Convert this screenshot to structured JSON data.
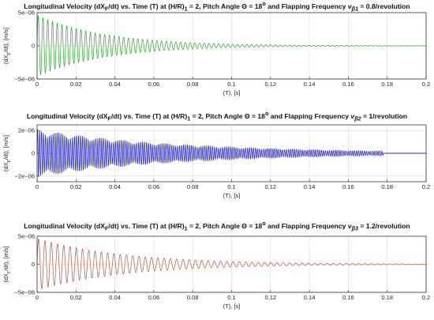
{
  "chart_data": [
    {
      "type": "line",
      "title_parts": {
        "main": "Longitudinal Velocity (dX",
        "sub1": "F",
        "mid": "/dt) vs. Time (T) at (H/R)",
        "sub2": "1",
        "mid2": " = 2, Pitch Angle ",
        "theta": "Θ",
        "mid3": " = 18",
        "deg": "o",
        "mid4": " and Flapping Frequency ",
        "nu": "ν",
        "nusub": "β1",
        "end": " = 0.8/revolution"
      },
      "xlabel": "(T), [s]",
      "ylabel": "(dX_F/dt), [m/s]",
      "ylabel_parts": {
        "a": "(dX",
        "sub": "F",
        "b": "/dt), [m/s]"
      },
      "xlim": [
        0,
        0.2
      ],
      "ylim": [
        -5e-06,
        5e-06
      ],
      "xticks": [
        "0",
        "0.02",
        "0.04",
        "0.06",
        "0.08",
        "0.1",
        "0.12",
        "0.14",
        "0.16",
        "0.18",
        "0.2"
      ],
      "yticks": [
        "5e−06",
        "0",
        "−5e−06"
      ],
      "ytick_values": [
        5e-06,
        0,
        -5e-06
      ],
      "grid": true,
      "series": [
        {
          "color": "#2ca02c",
          "amplitude": 4.6e-06,
          "decay_time": 0.035,
          "end_time": 0.2,
          "oscillations": 82,
          "beat": false
        }
      ]
    },
    {
      "type": "line",
      "title_parts": {
        "main": "Longitudinal Velocity (dX",
        "sub1": "F",
        "mid": "/dt) vs. Time (T) at (H/R)",
        "sub2": "1",
        "mid2": " = 2, Pitch Angle ",
        "theta": "Θ",
        "mid3": " = 18",
        "deg": "o",
        "mid4": " and Flapping Frequency ",
        "nu": "ν",
        "nusub": "β2",
        "end": " = 1/revolution"
      },
      "xlabel": "(T), [s]",
      "ylabel": "(dX_F/dt), [m/s]",
      "ylabel_parts": {
        "a": "(dX",
        "sub": "F",
        "b": "/dt), [m/s]"
      },
      "xlim": [
        0,
        0.2
      ],
      "ylim": [
        -2.5e-06,
        2.5e-06
      ],
      "xticks": [
        "0",
        "0.02",
        "0.04",
        "0.06",
        "0.08",
        "0.1",
        "0.12",
        "0.14",
        "0.16",
        "0.18",
        "0.2"
      ],
      "yticks": [
        "2e−06",
        "0",
        "−2e−06"
      ],
      "ytick_values": [
        2e-06,
        0,
        -2e-06
      ],
      "grid": true,
      "series": [
        {
          "color": "#2222cc",
          "amplitude": 2.1e-06,
          "decay_time": 0.075,
          "end_time": 0.178,
          "oscillations": 200,
          "beat": true
        }
      ]
    },
    {
      "type": "line",
      "title_parts": {
        "main": "Longitudinal Velocity (dX",
        "sub1": "F",
        "mid": "/dt) vs. Time (T) at (H/R)",
        "sub2": "1",
        "mid2": " = 2, Pitch Angle ",
        "theta": "Θ",
        "mid3": " = 18",
        "deg": "o",
        "mid4": " and Flapping Frequency ",
        "nu": "ν",
        "nusub": "β3",
        "end": " = 1.2/revolution"
      },
      "xlabel": "(T), [s]",
      "ylabel": "(dX_F/dt), [m/s]",
      "ylabel_parts": {
        "a": "(dX",
        "sub": "F",
        "b": "/dt), [m/s]"
      },
      "xlim": [
        0,
        0.2
      ],
      "ylim": [
        -5e-06,
        5e-06
      ],
      "xticks": [
        "0",
        "0.02",
        "0.04",
        "0.06",
        "0.08",
        "0.1",
        "0.12",
        "0.14",
        "0.16",
        "0.18",
        "0.2"
      ],
      "yticks": [
        "5e−06",
        "0",
        "−5e−06"
      ],
      "ytick_values": [
        5e-06,
        0,
        -5e-06
      ],
      "grid": true,
      "series": [
        {
          "color": "#b5533c",
          "amplitude": 4.6e-06,
          "decay_time": 0.045,
          "end_time": 0.2,
          "oscillations": 62,
          "beat": false
        }
      ]
    }
  ]
}
